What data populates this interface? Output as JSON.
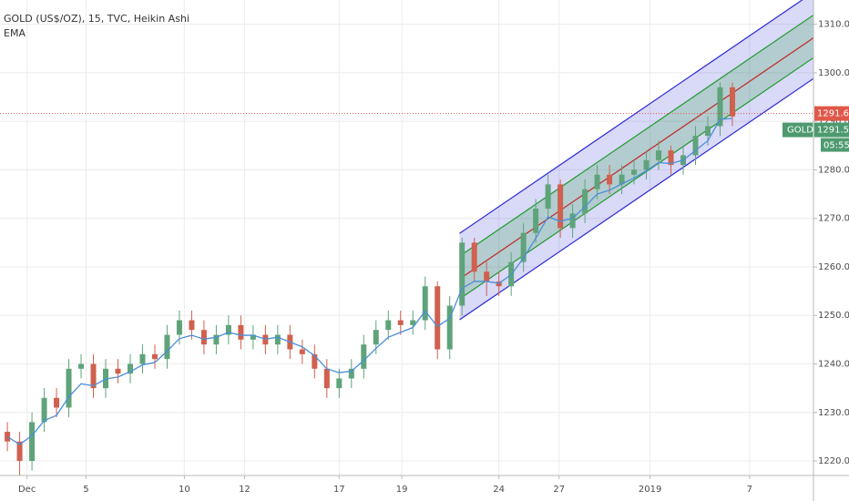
{
  "chart_data": {
    "type": "candlestick",
    "title": "GOLD (US$/OZ), 15, TVC, Heikin Ashi",
    "xlim": [
      -0.6,
      65.6
    ],
    "xticks": [
      {
        "value": 1.6,
        "label": "Dec"
      },
      {
        "value": 6.4,
        "label": "5"
      },
      {
        "value": 14.4,
        "label": "10"
      },
      {
        "value": 19.3,
        "label": "12"
      },
      {
        "value": 27.0,
        "label": "17"
      },
      {
        "value": 32.1,
        "label": "19"
      },
      {
        "value": 40.0,
        "label": "24"
      },
      {
        "value": 44.9,
        "label": "27"
      },
      {
        "value": 52.3,
        "label": "2019"
      },
      {
        "value": 60.4,
        "label": "7"
      }
    ],
    "ylim": [
      1217,
      1315
    ],
    "yticks": [
      {
        "value": 1220,
        "label": "1220.00"
      },
      {
        "value": 1230,
        "label": "1230.00"
      },
      {
        "value": 1240,
        "label": "1240.00"
      },
      {
        "value": 1250,
        "label": "1250.00"
      },
      {
        "value": 1260,
        "label": "1260.00"
      },
      {
        "value": 1270,
        "label": "1270.00"
      },
      {
        "value": 1280,
        "label": "1280.00"
      },
      {
        "value": 1290,
        "label": "1290.00"
      },
      {
        "value": 1300,
        "label": "1300.00"
      },
      {
        "value": 1310,
        "label": "1310.00"
      }
    ],
    "grid": true,
    "up_color": "#5fa37a",
    "down_color": "#d0604f",
    "ohlc": {
      "open": [
        1226,
        1224,
        1220,
        1228,
        1233,
        1231,
        1239,
        1240,
        1235,
        1239,
        1238,
        1240,
        1242,
        1241,
        1246,
        1249,
        1247,
        1244,
        1246,
        1248,
        1245,
        1246,
        1244,
        1246,
        1243,
        1242,
        1239,
        1235,
        1237,
        1239,
        1244,
        1247,
        1249,
        1248,
        1249,
        1256,
        1243,
        1252,
        1265,
        1259,
        1257,
        1256,
        1261,
        1267,
        1272,
        1277,
        1268,
        1271,
        1276,
        1279,
        1277,
        1279,
        1280,
        1282,
        1284,
        1281,
        1283,
        1287,
        1289,
        1297
      ],
      "high": [
        1228,
        1226,
        1230,
        1235,
        1235,
        1241,
        1242,
        1242,
        1241,
        1241,
        1242,
        1244,
        1244,
        1248,
        1251,
        1251,
        1249,
        1248,
        1250,
        1250,
        1248,
        1248,
        1248,
        1248,
        1245,
        1244,
        1241,
        1239,
        1241,
        1246,
        1249,
        1251,
        1251,
        1251,
        1258,
        1257,
        1254,
        1266,
        1266,
        1261,
        1259,
        1263,
        1269,
        1274,
        1279,
        1278,
        1273,
        1278,
        1281,
        1281,
        1281,
        1282,
        1284,
        1286,
        1285,
        1285,
        1289,
        1291,
        1298,
        1298
      ],
      "low": [
        1222,
        1217,
        1218,
        1226,
        1229,
        1229,
        1237,
        1233,
        1233,
        1236,
        1236,
        1238,
        1239,
        1239,
        1244,
        1245,
        1242,
        1242,
        1244,
        1243,
        1243,
        1242,
        1242,
        1241,
        1240,
        1237,
        1233,
        1233,
        1235,
        1237,
        1242,
        1245,
        1246,
        1246,
        1247,
        1241,
        1241,
        1250,
        1257,
        1254,
        1254,
        1254,
        1259,
        1265,
        1270,
        1266,
        1266,
        1269,
        1274,
        1275,
        1275,
        1277,
        1278,
        1280,
        1279,
        1279,
        1281,
        1285,
        1287,
        1289
      ],
      "close": [
        1224,
        1220,
        1228,
        1233,
        1231,
        1239,
        1240,
        1235,
        1239,
        1238,
        1240,
        1242,
        1241,
        1246,
        1249,
        1247,
        1244,
        1246,
        1248,
        1245,
        1246,
        1244,
        1246,
        1243,
        1242,
        1239,
        1235,
        1237,
        1239,
        1244,
        1247,
        1249,
        1248,
        1249,
        1256,
        1243,
        1252,
        1265,
        1259,
        1257,
        1256,
        1261,
        1267,
        1272,
        1277,
        1268,
        1271,
        1276,
        1279,
        1277,
        1279,
        1280,
        1282,
        1284,
        1281,
        1283,
        1287,
        1289,
        1297,
        1291
      ]
    },
    "overlays": [
      {
        "name": "EMA",
        "color": "#4a8fd8",
        "values": [
          1225,
          1223.4,
          1225.2,
          1228.3,
          1229.4,
          1233.2,
          1235.9,
          1235.5,
          1236.9,
          1237.3,
          1238.4,
          1239.8,
          1240.3,
          1242.6,
          1245.2,
          1245.9,
          1245.1,
          1245.5,
          1246.5,
          1245.9,
          1245.9,
          1245.1,
          1245.5,
          1244.5,
          1243.5,
          1241.7,
          1239.0,
          1238.2,
          1238.5,
          1240.7,
          1243.2,
          1245.5,
          1246.5,
          1247.5,
          1250.9,
          1247.7,
          1249.4,
          1255.6,
          1257.0,
          1257.0,
          1256.6,
          1258.4,
          1261.8,
          1265.9,
          1270.3,
          1269.4,
          1270.0,
          1272.4,
          1275.0,
          1275.8,
          1277.1,
          1278.3,
          1279.8,
          1281.5,
          1281.3,
          1282.0,
          1284.0,
          1286.0,
          1290.4,
          1290.6
        ]
      }
    ],
    "channel": {
      "x": [
        36.8,
        65.6
      ],
      "upper": [
        1266.9,
        1316.6
      ],
      "upper_inner": [
        1262.2,
        1311.9
      ],
      "center": [
        1257.5,
        1307.2
      ],
      "lower_inner": [
        1253.4,
        1303.1
      ],
      "lower": [
        1249.1,
        1298.8
      ],
      "outer_color": "#2a2ad6",
      "inner_color": "#1f9a2e",
      "center_color": "#c02828"
    },
    "last_price": {
      "value": 1291.61,
      "color": "#e0584a"
    },
    "symbol_label": {
      "name": "GOLD",
      "value": 1291.51,
      "countdown": "05:55",
      "color": "#4e9a6f"
    }
  }
}
